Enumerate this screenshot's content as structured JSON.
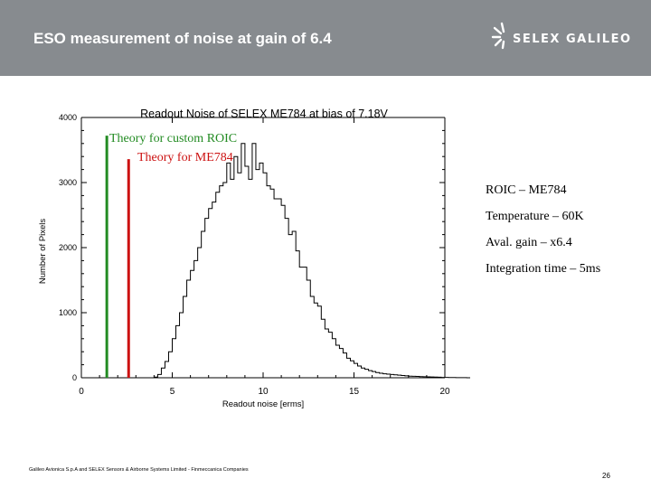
{
  "header": {
    "title": "ESO measurement of noise at gain of 6.4",
    "logo_text": "SELEX GALILEO",
    "logo_icon": "starburst-icon"
  },
  "chart_data": {
    "type": "histogram",
    "title": "Readout Noise of SELEX ME784 at bias of 7.18V",
    "xlabel": "Readout noise [erms]",
    "ylabel": "Number of Pixels",
    "xlim": [
      0,
      20
    ],
    "ylim": [
      0,
      4000
    ],
    "xticks": [
      "0",
      "5",
      "10",
      "15",
      "20"
    ],
    "yticks": [
      "0",
      "1000",
      "2000",
      "3000",
      "4000"
    ],
    "grid": false,
    "bin_width": 0.2,
    "histogram_counts": [
      0,
      0,
      0,
      0,
      0,
      0,
      0,
      0,
      0,
      0,
      0,
      0,
      0,
      0,
      0,
      0,
      0,
      0,
      0,
      0,
      10,
      50,
      150,
      250,
      400,
      600,
      800,
      1000,
      1250,
      1500,
      1650,
      1800,
      2000,
      2250,
      2450,
      2600,
      2700,
      2850,
      2950,
      3000,
      3300,
      3050,
      3400,
      3150,
      3600,
      3250,
      3050,
      3600,
      3200,
      3300,
      3150,
      2950,
      2900,
      2750,
      2750,
      2650,
      2450,
      2200,
      2250,
      1950,
      1700,
      1700,
      1500,
      1250,
      1150,
      1100,
      900,
      750,
      700,
      600,
      500,
      450,
      380,
      300,
      260,
      220,
      180,
      150,
      130,
      110,
      95,
      80,
      70,
      60,
      55,
      50,
      45,
      40,
      35,
      30,
      25,
      22,
      20,
      18,
      16,
      14,
      12,
      10,
      8,
      6,
      5,
      4,
      3,
      2,
      2,
      1,
      0,
      0,
      0,
      0
    ],
    "annotations": [
      {
        "label": "Theory for custom ROIC",
        "x": 1.4,
        "y": 3720,
        "color": "#228b22"
      },
      {
        "label": "Theory for ME784",
        "x": 2.6,
        "y": 3360,
        "color": "#cc1111"
      }
    ]
  },
  "specs": [
    "ROIC – ME784",
    "Temperature – 60K",
    "Aval. gain – x6.4",
    "Integration time – 5ms"
  ],
  "footer": {
    "note": "Galileo Avionica S.p.A and SELEX Sensors & Airborne Systems Limited - Finmeccanica Companies",
    "page_number": "26"
  }
}
